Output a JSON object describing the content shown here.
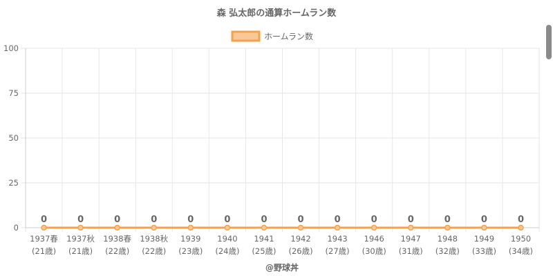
{
  "chart_data": {
    "type": "line",
    "title": "森 弘太郎の通算ホームラン数",
    "categories": [
      [
        "1937春",
        "(21歳)"
      ],
      [
        "1937秋",
        "(21歳)"
      ],
      [
        "1938春",
        "(22歳)"
      ],
      [
        "1938秋",
        "(22歳)"
      ],
      [
        "1939",
        "(23歳)"
      ],
      [
        "1940",
        "(24歳)"
      ],
      [
        "1941",
        "(25歳)"
      ],
      [
        "1942",
        "(26歳)"
      ],
      [
        "1943",
        "(27歳)"
      ],
      [
        "1946",
        "(30歳)"
      ],
      [
        "1947",
        "(31歳)"
      ],
      [
        "1948",
        "(32歳)"
      ],
      [
        "1949",
        "(33歳)"
      ],
      [
        "1950",
        "(34歳)"
      ]
    ],
    "series": [
      {
        "name": "ホームラン数",
        "values": [
          0,
          0,
          0,
          0,
          0,
          0,
          0,
          0,
          0,
          0,
          0,
          0,
          0,
          0
        ]
      }
    ],
    "ylim": [
      0,
      100
    ],
    "yticks": [
      "0",
      "25",
      "50",
      "75",
      "100"
    ],
    "grid": true,
    "legend": "top-center",
    "data_labels": true,
    "colors": {
      "line": "#f5a04a",
      "legend_fill": "#f9c896",
      "grid": "#e6e6e6",
      "text": "#666666"
    }
  },
  "credit": "@野球丼"
}
